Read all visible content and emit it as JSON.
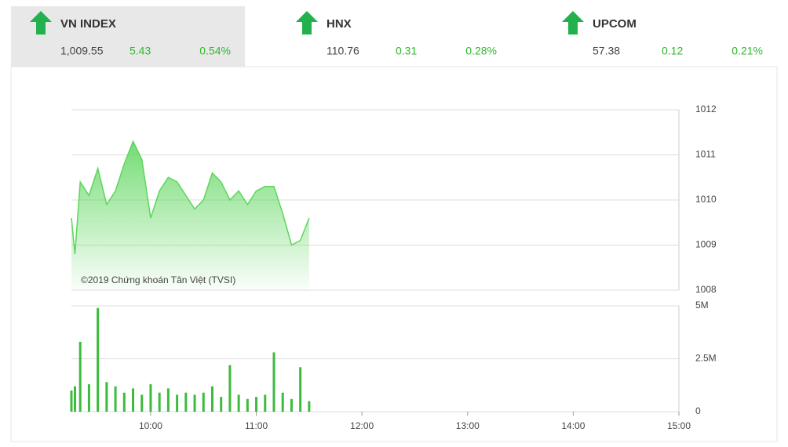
{
  "tickers": [
    {
      "name": "VN INDEX",
      "value": "1,009.55",
      "change": "5.43",
      "percent": "0.54%"
    },
    {
      "name": "HNX",
      "value": "110.76",
      "change": "0.31",
      "percent": "0.28%"
    },
    {
      "name": "UPCOM",
      "value": "57.38",
      "change": "0.12",
      "percent": "0.21%"
    }
  ],
  "chart_data": [
    {
      "type": "area",
      "annotation": "©2019 Chứng khoán Tân Việt (TVSI)",
      "color": "#5cd65c",
      "x": [
        "09:15",
        "09:17",
        "09:20",
        "09:25",
        "09:30",
        "09:35",
        "09:40",
        "09:45",
        "09:50",
        "09:55",
        "10:00",
        "10:05",
        "10:10",
        "10:15",
        "10:20",
        "10:25",
        "10:30",
        "10:35",
        "10:40",
        "10:45",
        "10:50",
        "10:55",
        "11:00",
        "11:05",
        "11:10",
        "11:15",
        "11:20",
        "11:25",
        "11:30"
      ],
      "values": [
        1009.6,
        1008.8,
        1010.4,
        1010.1,
        1010.7,
        1009.9,
        1010.2,
        1010.8,
        1011.3,
        1010.9,
        1009.6,
        1010.2,
        1010.5,
        1010.4,
        1010.1,
        1009.8,
        1010.0,
        1010.6,
        1010.4,
        1010.0,
        1010.2,
        1009.9,
        1010.2,
        1010.3,
        1010.3,
        1009.7,
        1009.0,
        1009.1,
        1009.6
      ],
      "xlim": [
        "09:15",
        "15:00"
      ],
      "ylim": [
        1008,
        1012
      ],
      "yticks": [
        1008,
        1009,
        1010,
        1011,
        1012
      ],
      "grid": true
    },
    {
      "type": "bar",
      "color": "#3dbb3d",
      "x": [
        "09:15",
        "09:17",
        "09:20",
        "09:25",
        "09:30",
        "09:35",
        "09:40",
        "09:45",
        "09:50",
        "09:55",
        "10:00",
        "10:05",
        "10:10",
        "10:15",
        "10:20",
        "10:25",
        "10:30",
        "10:35",
        "10:40",
        "10:45",
        "10:50",
        "10:55",
        "11:00",
        "11:05",
        "11:10",
        "11:15",
        "11:20",
        "11:25",
        "11:30"
      ],
      "values": [
        1000000,
        1200000,
        3300000,
        1300000,
        4900000,
        1400000,
        1200000,
        900000,
        1100000,
        800000,
        1300000,
        900000,
        1100000,
        800000,
        900000,
        800000,
        900000,
        1200000,
        700000,
        2200000,
        800000,
        600000,
        700000,
        800000,
        2800000,
        900000,
        600000,
        2100000,
        500000
      ],
      "xlim": [
        "09:15",
        "15:00"
      ],
      "ylim": [
        0,
        5000000
      ],
      "yticks": [
        0,
        {
          "value": 2500000,
          "label": "2.5M"
        },
        {
          "value": 5000000,
          "label": "5M"
        }
      ],
      "xticks": [
        "10:00",
        "11:00",
        "12:00",
        "13:00",
        "14:00",
        "15:00"
      ],
      "grid": true
    }
  ]
}
